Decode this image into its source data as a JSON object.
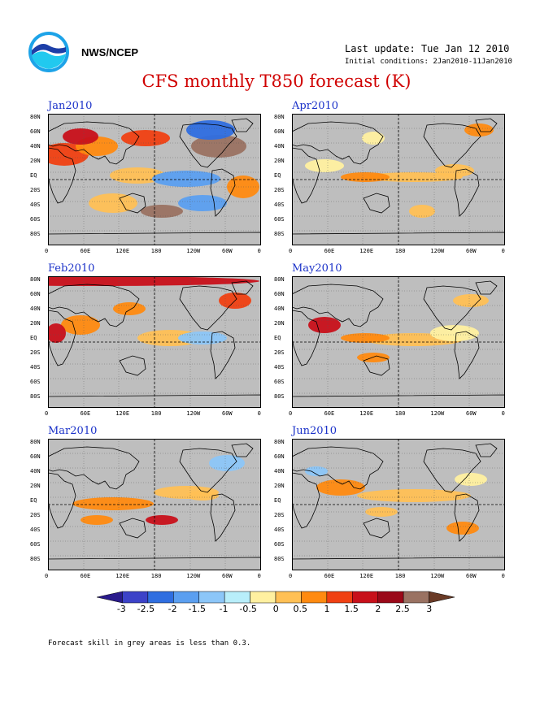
{
  "header": {
    "org": "NWS/NCEP",
    "last_update": "Last update: Tue Jan 12 2010",
    "initial_conditions": "Initial conditions: 2Jan2010-11Jan2010",
    "title": "CFS monthly T850 forecast (K)"
  },
  "lat_labels": [
    "80N",
    "60N",
    "40N",
    "20N",
    "EQ",
    "20S",
    "40S",
    "60S",
    "80S"
  ],
  "lon_labels": [
    "0",
    "60E",
    "120E",
    "180",
    "120W",
    "60W",
    "0"
  ],
  "panels": [
    {
      "month": "Jan2010"
    },
    {
      "month": "Apr2010"
    },
    {
      "month": "Feb2010"
    },
    {
      "month": "May2010"
    },
    {
      "month": "Mar2010"
    },
    {
      "month": "Jun2010"
    }
  ],
  "colorbar": {
    "labels": [
      "-3",
      "-2.5",
      "-2",
      "-1.5",
      "-1",
      "-0.5",
      "0",
      "0.5",
      "1",
      "1.5",
      "2",
      "2.5",
      "3"
    ],
    "colors": [
      "#2a1b8c",
      "#3c42c8",
      "#2f6ee0",
      "#5b9ff0",
      "#8cc6f8",
      "#b8eefa",
      "#fff0a0",
      "#ffc055",
      "#ff8a10",
      "#f04012",
      "#c8101a",
      "#9a0818",
      "#9a7262",
      "#6a3a26"
    ],
    "grey": "#bebebe"
  },
  "footnote": "Forecast skill in grey areas is less than 0.3."
}
